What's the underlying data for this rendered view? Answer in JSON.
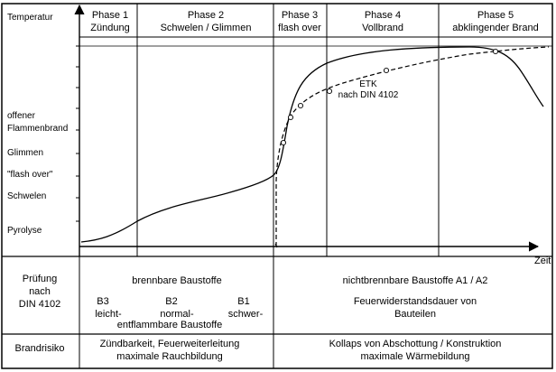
{
  "header": {
    "y_axis_label": "Temperatur",
    "phases": [
      {
        "name": "Phase 1",
        "desc": "Zündung"
      },
      {
        "name": "Phase 2",
        "desc": "Schwelen / Glimmen"
      },
      {
        "name": "Phase 3",
        "desc": "flash over"
      },
      {
        "name": "Phase 4",
        "desc": "Vollbrand"
      },
      {
        "name": "Phase 5",
        "desc": "abklingender Brand"
      }
    ]
  },
  "y_levels": [
    "offener",
    "Flammenbrand",
    "Glimmen",
    "\"flash over\"",
    "Schwelen",
    "Pyrolyse"
  ],
  "x_axis_label": "Zeit",
  "curve_labels": {
    "etk_line1": "ETK",
    "etk_line2": "nach DIN 4102"
  },
  "pruefung": {
    "row_label_1": "Prüfung",
    "row_label_2": "nach",
    "row_label_3": "DIN 4102",
    "brennbar_title": "brennbare Baustoffe",
    "classes": [
      {
        "code": "B3",
        "desc": "leicht-"
      },
      {
        "code": "B2",
        "desc": "normal-"
      },
      {
        "code": "B1",
        "desc": "schwer-"
      }
    ],
    "entflammbar": "entflammbare Baustoffe",
    "nicht_title": "nichtbrennbare Baustoffe A1 / A2",
    "feuer_1": "Feuerwiderstandsdauer von",
    "feuer_2": "Bauteilen"
  },
  "brandrisiko": {
    "label": "Brandrisiko",
    "left_1": "Zündbarkeit, Feuerweiterleitung",
    "left_2": "maximale Rauchbildung",
    "right_1": "Kollaps von Abschottung / Konstruktion",
    "right_2": "maximale Wärmebildung"
  }
}
